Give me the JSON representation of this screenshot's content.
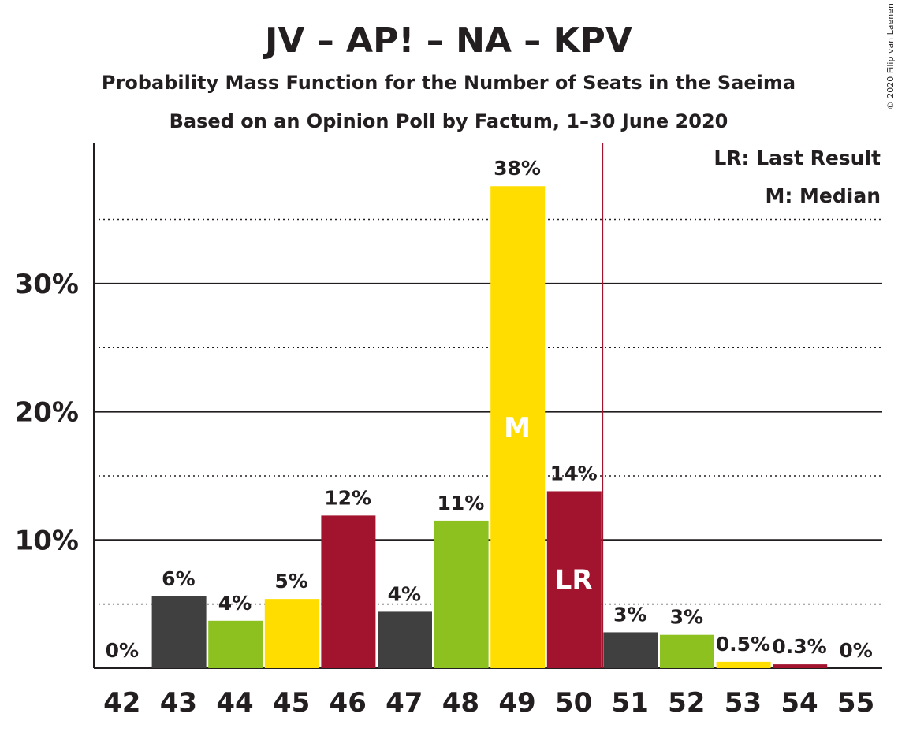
{
  "title": "JV – AP! – NA – KPV",
  "subtitle1": "Probability Mass Function for the Number of Seats in the Saeima",
  "subtitle2": "Based on an Opinion Poll by Factum, 1–30 June 2020",
  "copyright": "© 2020 Filip van Laenen",
  "legend": {
    "lr": "LR: Last Result",
    "median": "M: Median"
  },
  "colors": {
    "dark": "#404040",
    "green": "#8CC11F",
    "yellow": "#FFDD00",
    "red": "#A2132E",
    "text": "#231F20",
    "lr_line": "#A2132E"
  },
  "chart_data": {
    "type": "bar",
    "categories": [
      "42",
      "43",
      "44",
      "45",
      "46",
      "47",
      "48",
      "49",
      "50",
      "51",
      "52",
      "53",
      "54",
      "55"
    ],
    "values": [
      0,
      5.6,
      3.7,
      5.4,
      11.9,
      4.4,
      11.5,
      37.6,
      13.8,
      2.8,
      2.6,
      0.5,
      0.3,
      0
    ],
    "data_labels": [
      "0%",
      "6%",
      "4%",
      "5%",
      "12%",
      "4%",
      "11%",
      "38%",
      "14%",
      "3%",
      "3%",
      "0.5%",
      "0.3%",
      "0%"
    ],
    "bar_colors": [
      "dark",
      "dark",
      "green",
      "yellow",
      "red",
      "dark",
      "green",
      "yellow",
      "red",
      "dark",
      "green",
      "yellow",
      "red",
      "dark"
    ],
    "yticks": [
      {
        "value": 10,
        "label": "10%"
      },
      {
        "value": 20,
        "label": "20%"
      },
      {
        "value": 30,
        "label": "30%"
      }
    ],
    "minor_gridlines": [
      5,
      15,
      25,
      35
    ],
    "ylim": [
      0,
      41
    ],
    "median": {
      "category": "49",
      "label": "M"
    },
    "last_result": {
      "category": "50",
      "label": "LR"
    },
    "legend_position": "top-right"
  }
}
